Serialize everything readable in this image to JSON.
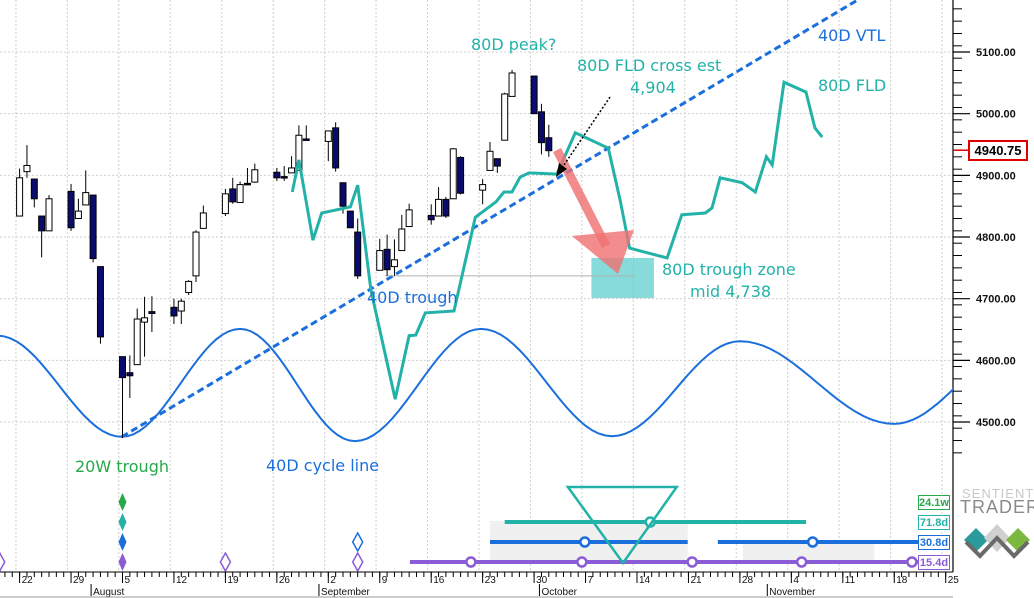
{
  "chart_data": {
    "type": "candlestick",
    "base_date": "2024-07-22",
    "y_axis": {
      "ticks": [
        5100,
        5000,
        4900,
        4800,
        4700,
        4600,
        4500
      ],
      "labels": [
        "5100.00",
        "5000.00",
        "4900.00",
        "4800.00",
        "4700.00",
        "4600.00",
        "4500.00"
      ]
    },
    "last_price": "4940.75",
    "candles": [
      [
        "07-22",
        4834,
        4911,
        4834,
        4896
      ],
      [
        "07-23",
        4906,
        4949,
        4896,
        4916
      ],
      [
        "07-24",
        4894,
        4894,
        4848,
        4862
      ],
      [
        "07-25",
        4834,
        4834,
        4767,
        4810
      ],
      [
        "07-26",
        4810,
        4868,
        4810,
        4862
      ],
      [
        "07-29",
        4874,
        4886,
        4810,
        4815
      ],
      [
        "07-30",
        4830,
        4862,
        4830,
        4842
      ],
      [
        "07-31",
        4852,
        4908,
        4852,
        4872
      ],
      [
        "08-01",
        4868,
        4868,
        4759,
        4765
      ],
      [
        "08-02",
        4752,
        4752,
        4627,
        4638
      ],
      [
        "08-05",
        4606,
        4606,
        4474,
        4572
      ],
      [
        "08-06",
        4580,
        4608,
        4539,
        4575
      ],
      [
        "08-07",
        4593,
        4684,
        4593,
        4667
      ],
      [
        "08-08",
        4662,
        4703,
        4606,
        4669
      ],
      [
        "08-09",
        4679,
        4704,
        4646,
        4676
      ],
      [
        "08-12",
        4686,
        4700,
        4659,
        4672
      ],
      [
        "08-13",
        4680,
        4700,
        4659,
        4696
      ],
      [
        "08-14",
        4710,
        4730,
        4706,
        4728
      ],
      [
        "08-15",
        4737,
        4811,
        4727,
        4808
      ],
      [
        "08-16",
        4814,
        4851,
        4814,
        4839
      ],
      [
        "08-19",
        4838,
        4878,
        4834,
        4870
      ],
      [
        "08-20",
        4878,
        4896,
        4854,
        4857
      ],
      [
        "08-21",
        4856,
        4890,
        4856,
        4885
      ],
      [
        "08-22",
        4887,
        4912,
        4886,
        4886
      ],
      [
        "08-23",
        4889,
        4919,
        4888,
        4909
      ],
      [
        "08-26",
        4905,
        4912,
        4891,
        4896
      ],
      [
        "08-27",
        4898,
        4915,
        4891,
        4896
      ],
      [
        "08-28",
        4904,
        4931,
        4904,
        4912
      ],
      [
        "08-29",
        4908,
        4981,
        4908,
        4965
      ],
      [
        "08-30",
        4959,
        4981,
        4957,
        4958
      ],
      [
        "09-02",
        4955,
        4972,
        4923,
        4972
      ],
      [
        "09-03",
        4977,
        4986,
        4906,
        4912
      ],
      [
        "09-04",
        4888,
        4888,
        4838,
        4850
      ],
      [
        "09-05",
        4842,
        4842,
        4815,
        4815
      ],
      [
        "09-06",
        4808,
        4830,
        4732,
        4737
      ],
      [
        "09-09",
        4746,
        4797,
        4746,
        4778
      ],
      [
        "09-10",
        4780,
        4804,
        4737,
        4747
      ],
      [
        "09-11",
        4752,
        4796,
        4737,
        4763
      ],
      [
        "09-12",
        4778,
        4836,
        4778,
        4813
      ],
      [
        "09-13",
        4817,
        4854,
        4817,
        4844
      ],
      [
        "09-16",
        4835,
        4853,
        4820,
        4828
      ],
      [
        "09-17",
        4834,
        4881,
        4834,
        4861
      ],
      [
        "09-18",
        4861,
        4865,
        4831,
        4834
      ],
      [
        "09-19",
        4862,
        4944,
        4862,
        4943
      ],
      [
        "09-20",
        4929,
        4931,
        4869,
        4871
      ],
      [
        "09-23",
        4876,
        4894,
        4853,
        4885
      ],
      [
        "09-24",
        4908,
        4954,
        4908,
        4939
      ],
      [
        "09-25",
        4927,
        4927,
        4904,
        4915
      ],
      [
        "09-26",
        4957,
        5034,
        4957,
        5032
      ],
      [
        "09-27",
        5028,
        5071,
        5028,
        5066
      ],
      [
        "09-30",
        5061,
        5061,
        5000,
        5000
      ],
      [
        "10-01",
        5003,
        5016,
        4934,
        4953
      ],
      [
        "10-02",
        4961,
        4982,
        4930,
        4940
      ]
    ],
    "series": [
      {
        "name": "80D FLD",
        "color": "#22b2a8",
        "points": [
          [
            37.1,
            4873
          ],
          [
            38.0,
            4925
          ],
          [
            39.9,
            4795
          ],
          [
            41.1,
            4839
          ],
          [
            45.0,
            4849
          ],
          [
            46.0,
            4884
          ],
          [
            47.8,
            4714
          ],
          [
            51.1,
            4537
          ],
          [
            53.0,
            4640
          ],
          [
            53.9,
            4641
          ],
          [
            55.2,
            4677
          ],
          [
            59.1,
            4680
          ],
          [
            62.0,
            4832
          ],
          [
            64.8,
            4857
          ],
          [
            65.9,
            4873
          ],
          [
            67.0,
            4873
          ],
          [
            68.1,
            4897
          ],
          [
            69.3,
            4904
          ],
          [
            73.1,
            4902
          ],
          [
            75.6,
            4969
          ],
          [
            80.1,
            4944
          ],
          [
            81.7,
            4860
          ],
          [
            83.0,
            4782
          ],
          [
            88.1,
            4766
          ],
          [
            90.1,
            4836
          ],
          [
            93.3,
            4839
          ],
          [
            94.2,
            4847
          ],
          [
            95.3,
            4896
          ],
          [
            98.3,
            4888
          ],
          [
            100.1,
            4873
          ],
          [
            101.6,
            4930
          ],
          [
            102.4,
            4917
          ],
          [
            104.0,
            5051
          ],
          [
            107.0,
            5035
          ],
          [
            108.2,
            4977
          ],
          [
            109.2,
            4962
          ]
        ]
      },
      {
        "name": "40D cycle line",
        "color": "#1a6fdc",
        "extrema": [
          [
            -3,
            4640
          ],
          [
            13.9,
            4476
          ],
          [
            30,
            4651
          ],
          [
            45.6,
            4469
          ],
          [
            62.8,
            4651
          ],
          [
            80.6,
            4477
          ],
          [
            98,
            4631
          ],
          [
            119,
            4497
          ],
          [
            136,
            4620
          ]
        ]
      },
      {
        "name": "40D VTL",
        "color": "#1a6fdc",
        "points": [
          [
            13.9,
            4476
          ],
          [
            125,
            5262
          ]
        ]
      }
    ],
    "trough_zone": {
      "from_day": 77.8,
      "to_day": 86.3,
      "high": 4766,
      "low": 4701,
      "mid": 4738
    },
    "trough_level_line": {
      "from_day": 49.7,
      "to_day": 83.7,
      "price": 4737
    },
    "x_axis": {
      "day_labels": [
        [
          "22",
          0
        ],
        [
          "29",
          7
        ],
        [
          "5",
          14
        ],
        [
          "12",
          21
        ],
        [
          "19",
          28
        ],
        [
          "26",
          35
        ],
        [
          "2",
          42
        ],
        [
          "9",
          49
        ],
        [
          "16",
          56
        ],
        [
          "23",
          63
        ],
        [
          "30",
          70
        ],
        [
          "7",
          77
        ],
        [
          "14",
          84
        ],
        [
          "21",
          91
        ],
        [
          "28",
          98
        ],
        [
          "4",
          105
        ],
        [
          "11",
          112
        ],
        [
          "18",
          119
        ],
        [
          "25",
          126
        ]
      ],
      "months": [
        [
          "August",
          10
        ],
        [
          "September",
          41
        ],
        [
          "October",
          71
        ],
        [
          "November",
          102
        ]
      ]
    },
    "annotations": {
      "peak": "80D peak?",
      "fld_cross": "80D FLD cross est",
      "fld_cross_value": "4,904",
      "vtl": "40D VTL",
      "fld": "80D FLD",
      "trough_zone": "80D trough zone",
      "trough_mid": "mid 4,738",
      "trough_40": "40D trough",
      "trough_20w": "20W trough",
      "cycle_line": "40D cycle line"
    },
    "cycles_panel": {
      "rows": [
        {
          "label": "24.1w",
          "color": "#27a84a",
          "lines": [],
          "circles": []
        },
        {
          "label": "71.8d",
          "color": "#22b2a8",
          "lines": [
            [
              66,
              107
            ]
          ],
          "circles": [
            85.8
          ]
        },
        {
          "label": "30.8d",
          "color": "#1a6fdc",
          "lines": [
            [
              64,
              90.9
            ],
            [
              95,
              127
            ]
          ],
          "circles": [
            76.9,
            107.9
          ]
        },
        {
          "label": "15.4d",
          "color": "#8a5cd6",
          "lines": [
            [
              53.1,
              127
            ]
          ],
          "circles": [
            61.4,
            76.5,
            91.5,
            106.4,
            121.4
          ]
        }
      ],
      "trough_triangle": {
        "from_day": 74.6,
        "to_day": 89.4,
        "apex_day": 82.1
      },
      "shaded": [
        [
          64,
          90.9,
          0
        ],
        [
          68.4,
          86.3,
          1
        ],
        [
          98.4,
          116.3,
          1
        ]
      ],
      "filled_diamonds_day": 14,
      "hollow_diamonds": [
        [
          28,
          3
        ],
        [
          46,
          2
        ],
        [
          46,
          3
        ],
        [
          -2.7,
          3
        ]
      ]
    },
    "logo": {
      "line1": "SENTIENT",
      "line2": "TRADER"
    },
    "colors": {
      "candle_down": "#0b0b6e",
      "arrow": "#f07070",
      "grid": "#cfcfcf"
    }
  }
}
